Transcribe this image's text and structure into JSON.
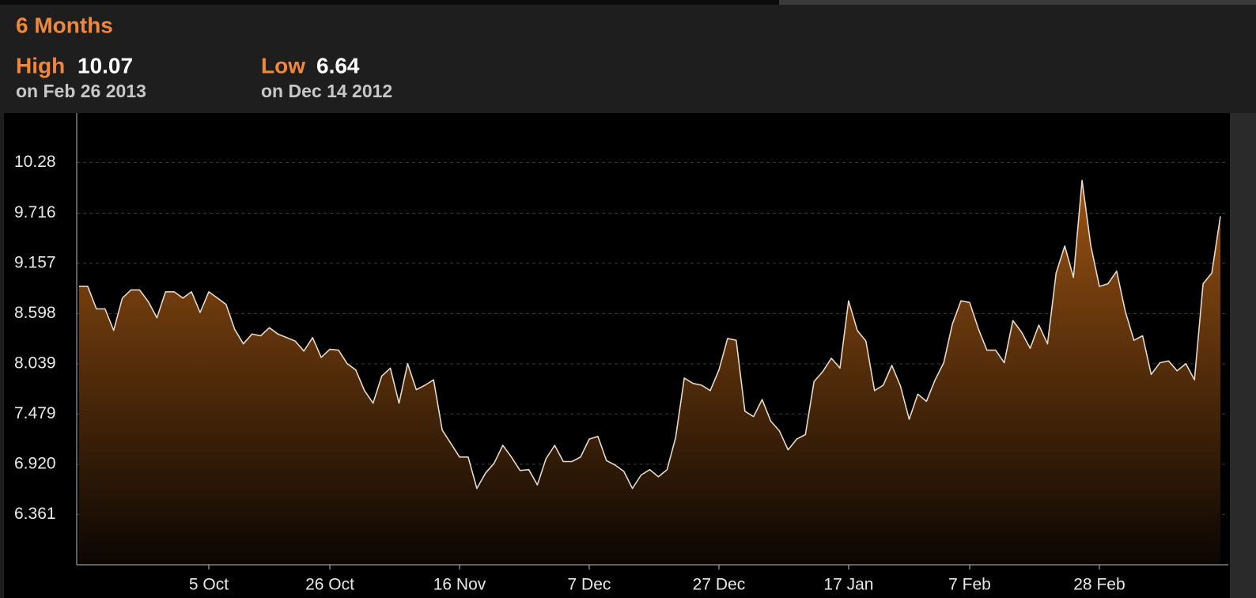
{
  "chart_data": {
    "type": "area",
    "title": "6 Months",
    "high": {
      "label": "High",
      "value": 10.07,
      "date": "on Feb 26 2013"
    },
    "low": {
      "label": "Low",
      "value": 6.64,
      "date": "on Dec 14 2012"
    },
    "categories": [
      null,
      null,
      null,
      null,
      null,
      null,
      null,
      null,
      null,
      null,
      null,
      null,
      null,
      null,
      null,
      "5 Oct",
      null,
      null,
      null,
      null,
      null,
      null,
      null,
      null,
      null,
      null,
      null,
      null,
      null,
      "26 Oct",
      null,
      null,
      null,
      null,
      null,
      null,
      null,
      null,
      null,
      null,
      null,
      null,
      null,
      null,
      "16 Nov",
      null,
      null,
      null,
      null,
      null,
      null,
      null,
      null,
      null,
      null,
      null,
      null,
      null,
      null,
      "7 Dec",
      null,
      null,
      null,
      null,
      null,
      null,
      null,
      null,
      null,
      null,
      null,
      null,
      null,
      null,
      "27 Dec",
      null,
      null,
      null,
      null,
      null,
      null,
      null,
      null,
      null,
      null,
      null,
      null,
      null,
      null,
      "17 Jan",
      null,
      null,
      null,
      null,
      null,
      null,
      null,
      null,
      null,
      null,
      null,
      null,
      null,
      "7 Feb",
      null,
      null,
      null,
      null,
      null,
      null,
      null,
      null,
      null,
      null,
      null,
      null,
      null,
      null,
      "28 Feb",
      null,
      null,
      null,
      null,
      null,
      null,
      null,
      null,
      null,
      null,
      null,
      null,
      null,
      null
    ],
    "values": [
      8.9,
      8.9,
      8.65,
      8.65,
      8.41,
      8.77,
      8.86,
      8.86,
      8.73,
      8.55,
      8.84,
      8.84,
      8.77,
      8.84,
      8.61,
      8.84,
      8.77,
      8.7,
      8.42,
      8.26,
      8.37,
      8.35,
      8.44,
      8.37,
      8.33,
      8.29,
      8.18,
      8.33,
      8.11,
      8.2,
      8.19,
      8.04,
      7.97,
      7.74,
      7.6,
      7.9,
      7.99,
      7.6,
      8.04,
      7.75,
      7.8,
      7.86,
      7.3,
      7.15,
      7.0,
      7.0,
      6.65,
      6.82,
      6.93,
      7.13,
      7.0,
      6.85,
      6.86,
      6.69,
      6.98,
      7.13,
      6.95,
      6.95,
      7.0,
      7.2,
      7.23,
      6.96,
      6.91,
      6.84,
      6.65,
      6.8,
      6.86,
      6.78,
      6.86,
      7.22,
      7.88,
      7.82,
      7.8,
      7.74,
      7.97,
      8.32,
      8.3,
      7.51,
      7.45,
      7.64,
      7.4,
      7.29,
      7.08,
      7.2,
      7.25,
      7.84,
      7.95,
      8.1,
      7.99,
      8.74,
      8.41,
      8.29,
      7.74,
      7.8,
      8.02,
      7.79,
      7.42,
      7.7,
      7.62,
      7.86,
      8.05,
      8.48,
      8.74,
      8.72,
      8.43,
      8.19,
      8.19,
      8.05,
      8.52,
      8.39,
      8.21,
      8.47,
      8.26,
      9.05,
      9.35,
      9.0,
      10.08,
      9.36,
      8.9,
      8.93,
      9.07,
      8.62,
      8.3,
      8.35,
      7.92,
      8.05,
      8.07,
      7.96,
      8.04,
      7.86,
      8.93,
      9.05,
      9.68
    ],
    "color": "#9a5212",
    "line_color": "#e6d8c8",
    "ylim": [
      5.8,
      10.83
    ],
    "yticks": [
      6.361,
      {
        "value": 6.92,
        "label": "6.920"
      },
      7.479,
      8.039,
      8.598,
      9.157,
      9.716,
      10.28
    ],
    "grid": true
  }
}
